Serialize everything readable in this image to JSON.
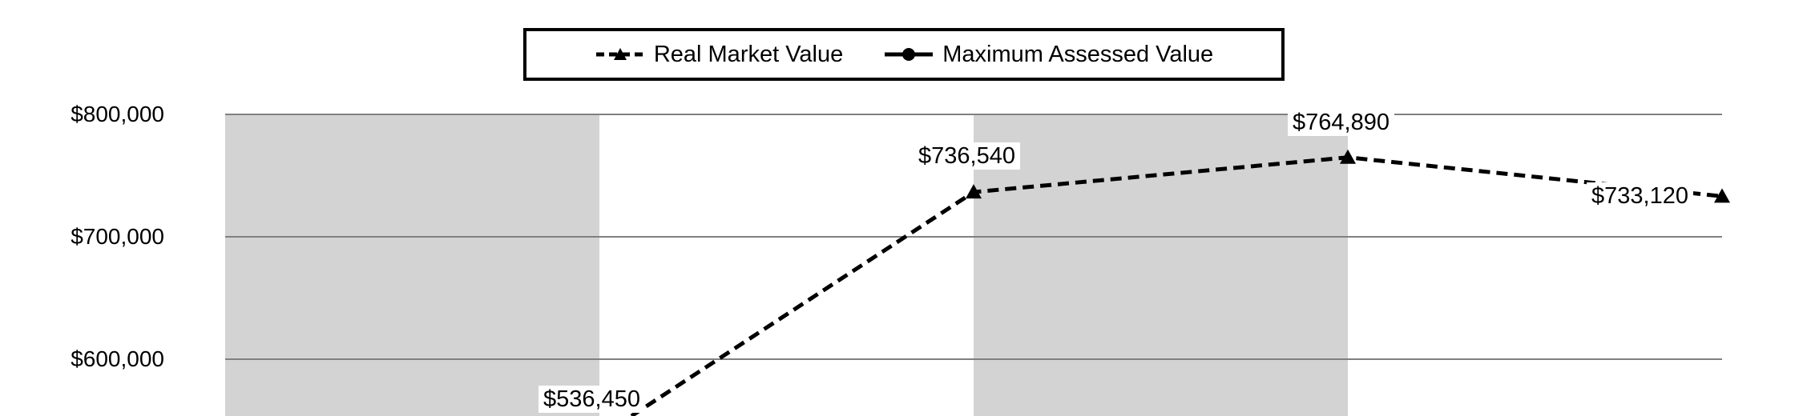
{
  "chart_data": {
    "type": "line",
    "title": "",
    "xlabel": "",
    "ylabel": "",
    "ylim": [
      500000,
      830000
    ],
    "y_ticks": [
      "$600,000",
      "$700,000",
      "$800,000"
    ],
    "y_tick_values": [
      600000,
      700000,
      800000
    ],
    "grid": true,
    "legend_position": "top",
    "background_bands": "alternating gray/white vertical bands",
    "colors": {
      "band": "#d3d3d3",
      "grid": "#808080",
      "line": "#000000"
    },
    "series": [
      {
        "name": "Real Market Value",
        "style": "dashed",
        "marker": "triangle",
        "values": [
          536450,
          736540,
          764890,
          733120
        ],
        "labels": [
          "$536,450",
          "$736,540",
          "$764,890",
          "$733,120"
        ]
      },
      {
        "name": "Maximum Assessed Value",
        "style": "solid",
        "marker": "circle",
        "values": []
      }
    ]
  }
}
